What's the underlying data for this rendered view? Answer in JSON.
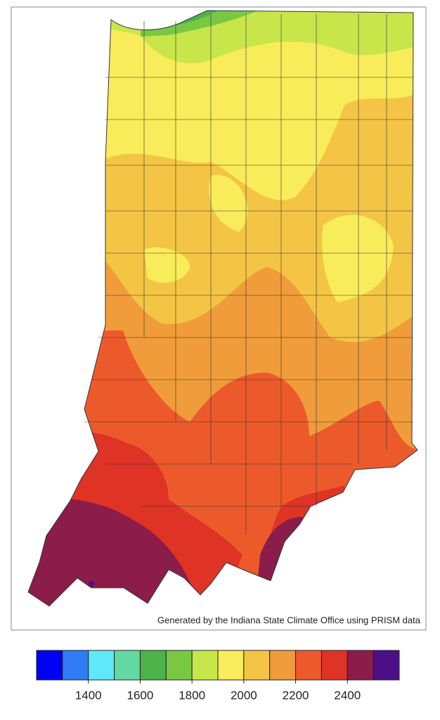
{
  "credit": "Generated by the Indiana State Climate Office using PRISM data",
  "legend": {
    "bins": [
      1200,
      1300,
      1400,
      1500,
      1600,
      1700,
      1800,
      1900,
      2000,
      2100,
      2200,
      2300,
      2400,
      2500,
      2600
    ],
    "colors": [
      "#0000f5",
      "#2f7cf6",
      "#5ee8f8",
      "#62d9a2",
      "#4db34a",
      "#79c843",
      "#c8e64a",
      "#f9ec5a",
      "#f4c544",
      "#f09c3a",
      "#ec5a2c",
      "#df3326",
      "#8c1c4a",
      "#4e0e86"
    ],
    "ticks": [
      1400,
      1600,
      1800,
      2000,
      2200,
      2400
    ]
  }
}
